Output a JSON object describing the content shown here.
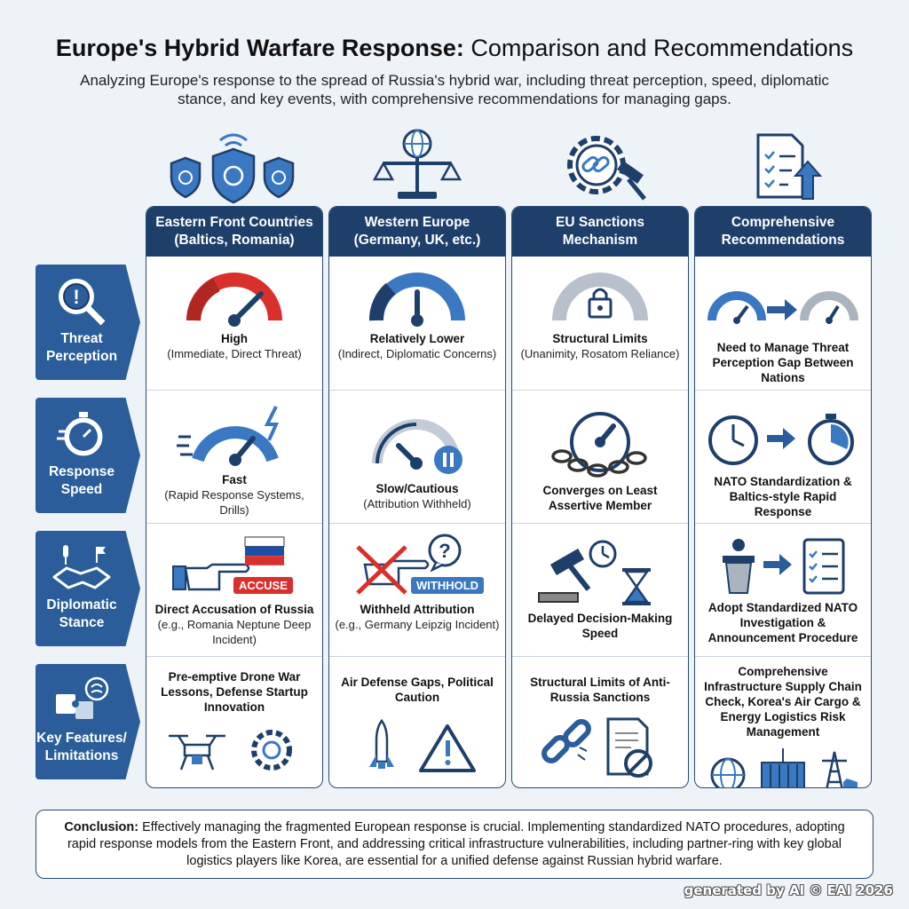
{
  "header": {
    "title_bold": "Europe's Hybrid Warfare Response:",
    "title_rest": " Comparison and Recommendations",
    "subtitle": "Analyzing Europe's response to the spread of Russia's hybrid war, including threat perception, speed, diplomatic stance, and key events, with comprehensive recommendations for managing gaps."
  },
  "rows": [
    {
      "label": "Threat Perception",
      "icon": "magnifier-exclamation-icon"
    },
    {
      "label": "Response Speed",
      "icon": "stopwatch-icon"
    },
    {
      "label": "Diplomatic Stance",
      "icon": "handshake-icon"
    },
    {
      "label": "Key Features/ Limitations",
      "icon": "puzzle-brain-icon"
    }
  ],
  "columns": [
    {
      "header": "Eastern Front Countries (Baltics, Romania)",
      "top_icon": "shields-icon",
      "cells": [
        {
          "title": "High",
          "sub": "(Immediate, Direct Threat)",
          "icon": "gauge-high-icon"
        },
        {
          "title": "Fast",
          "sub": "(Rapid Response Systems, Drills)",
          "icon": "speedometer-fast-icon"
        },
        {
          "title": "Direct Accusation of Russia",
          "sub": "(e.g., Romania Neptune Deep Incident)",
          "icon": "pointing-hand-flag-icon",
          "badge": "ACCUSE"
        },
        {
          "title": "Pre-emptive Drone War Lessons, Defense Startup Innovation",
          "sub": "",
          "icon": "drone-gear-icon"
        }
      ]
    },
    {
      "header": "Western Europe (Germany, UK, etc.)",
      "top_icon": "scales-globe-icon",
      "cells": [
        {
          "title": "Relatively Lower",
          "sub": "(Indirect, Diplomatic Concerns)",
          "icon": "gauge-mid-icon"
        },
        {
          "title": "Slow/Cautious",
          "sub": "(Attribution Withheld)",
          "icon": "gauge-pause-icon"
        },
        {
          "title": "Withheld Attribution",
          "sub": "(e.g., Germany Leipzig Incident)",
          "icon": "crossed-hand-question-icon",
          "badge": "WITHHOLD"
        },
        {
          "title": "Air Defense Gaps, Political Caution",
          "sub": "",
          "icon": "missile-warning-icon"
        }
      ]
    },
    {
      "header": "EU Sanctions Mechanism",
      "top_icon": "gear-chain-gavel-icon",
      "cells": [
        {
          "title": "Structural Limits",
          "sub": "(Unanimity, Rosatom Reliance)",
          "icon": "gauge-lock-icon"
        },
        {
          "title": "Converges on Least Assertive Member",
          "sub": "",
          "icon": "gauge-chain-icon"
        },
        {
          "title": "Delayed Decision-Making Speed",
          "sub": "",
          "icon": "gavel-clock-hourglass-icon"
        },
        {
          "title": "Structural Limits of Anti-Russia Sanctions",
          "sub": "",
          "icon": "broken-chain-document-icon"
        }
      ]
    },
    {
      "header": "Comprehensive Recommendations",
      "top_icon": "checklist-upload-icon",
      "cells": [
        {
          "title": "Need to Manage Threat Perception Gap Between Nations",
          "sub": "",
          "icon": "gauge-arrow-gauge-icon"
        },
        {
          "title": "NATO Standardization & Baltics-style Rapid Response",
          "sub": "",
          "icon": "clock-arrow-stopwatch-icon"
        },
        {
          "title": "Adopt Standardized NATO Investigation & Announcement Procedure",
          "sub": "",
          "icon": "podium-arrow-checklist-icon"
        },
        {
          "title": "Comprehensive Infrastructure Supply Chain Check, Korea's Air Cargo & Energy Logistics Risk Management",
          "sub": "",
          "icon": "globe-container-pylon-icon"
        }
      ]
    }
  ],
  "conclusion": {
    "label": "Conclusion:",
    "text": " Effectively managing the fragmented European response is crucial. Implementing standardized NATO procedures, adopting rapid response models from the Eastern Front, and addressing critical infrastructure vulnerabilities, including partner-ring with key global logistics players like Korea, are essential for a unified defense against Russian hybrid warfare."
  },
  "footer": "generated by AI © EAI 2026",
  "colors": {
    "navy": "#1f3f6b",
    "blue": "#2a5d99",
    "red": "#d9302c",
    "accent": "#3a78c2"
  }
}
